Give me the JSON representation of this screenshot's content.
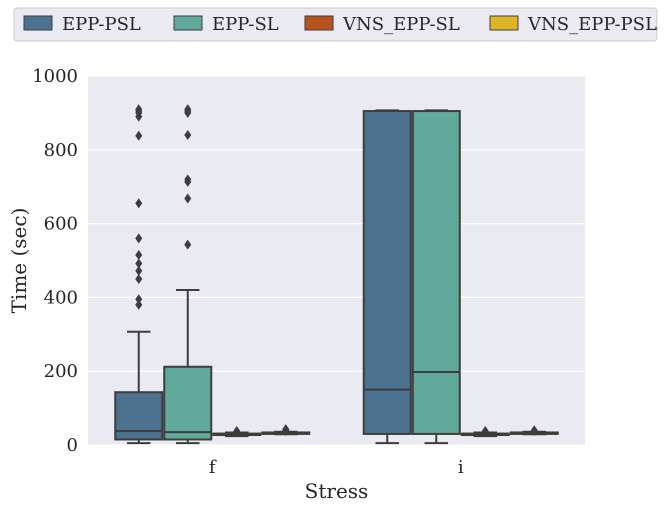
{
  "chart_data": {
    "type": "box",
    "xlabel": "Stress",
    "ylabel": "Time (sec)",
    "ylim": [
      0,
      1000
    ],
    "yticks": [
      0,
      200,
      400,
      600,
      800,
      1000
    ],
    "grid": true,
    "legend_position": "top",
    "categories": [
      "f",
      "i"
    ],
    "series": [
      {
        "name": "EPP-PSL",
        "color": "#4c7290",
        "boxes": [
          {
            "min": 5,
            "q1": 15,
            "median": 38,
            "q3": 143,
            "max": 307,
            "outliers": [
              380,
              395,
              450,
              472,
              492,
              515,
              560,
              655,
              838,
              890,
              900,
              905,
              910
            ]
          },
          {
            "min": 5,
            "q1": 30,
            "median": 150,
            "q3": 905,
            "max": 907,
            "outliers": []
          }
        ]
      },
      {
        "name": "EPP-SL",
        "color": "#61a99a",
        "boxes": [
          {
            "min": 5,
            "q1": 15,
            "median": 35,
            "q3": 212,
            "max": 420,
            "outliers": [
              543,
              668,
              713,
              720,
              840,
              900,
              905,
              910
            ]
          },
          {
            "min": 5,
            "q1": 30,
            "median": 198,
            "q3": 905,
            "max": 907,
            "outliers": []
          }
        ]
      },
      {
        "name": "VNS_EPP-SL",
        "color": "#b9531e",
        "boxes": [
          {
            "min": 24,
            "q1": 27,
            "median": 29,
            "q3": 31,
            "max": 34,
            "outliers": [
              38,
              35
            ]
          },
          {
            "min": 24,
            "q1": 27,
            "median": 29,
            "q3": 31,
            "max": 34,
            "outliers": [
              38,
              35
            ]
          }
        ]
      },
      {
        "name": "VNS_EPP-PSL",
        "color": "#dcb527",
        "boxes": [
          {
            "min": 29,
            "q1": 30,
            "median": 31,
            "q3": 34,
            "max": 36,
            "outliers": [
              40,
              43,
              38
            ]
          },
          {
            "min": 29,
            "q1": 30,
            "median": 31,
            "q3": 34,
            "max": 36,
            "outliers": [
              40,
              38
            ]
          }
        ]
      }
    ]
  }
}
